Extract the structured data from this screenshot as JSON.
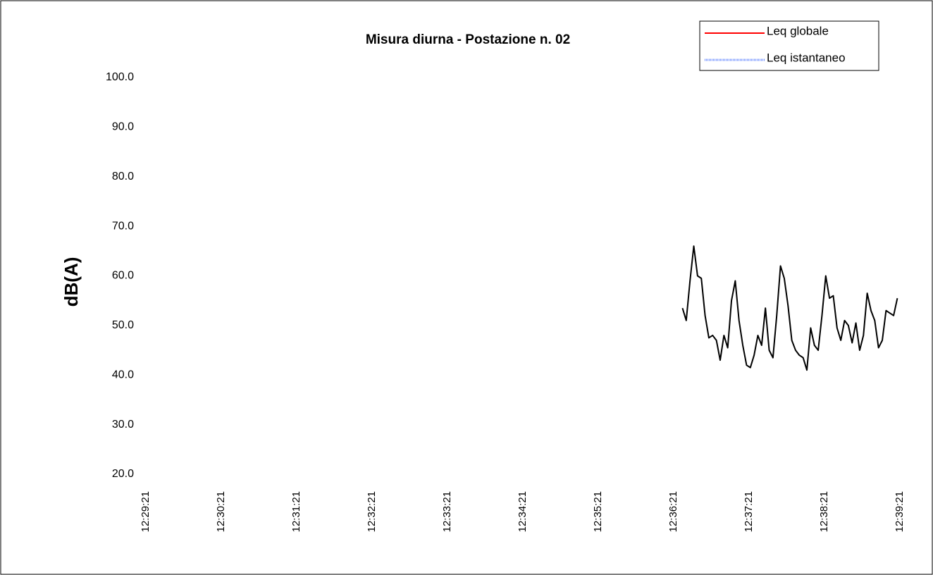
{
  "chart_data": {
    "type": "line",
    "title": "Misura diurna - Postazione n. 02",
    "ylabel": "dB(A)",
    "ylim": [
      20,
      100
    ],
    "yticks": [
      {
        "value": 20,
        "label": "20.0"
      },
      {
        "value": 30,
        "label": "30.0"
      },
      {
        "value": 40,
        "label": "40.0"
      },
      {
        "value": 50,
        "label": "50.0"
      },
      {
        "value": 60,
        "label": "60.0"
      },
      {
        "value": 70,
        "label": "70.0"
      },
      {
        "value": 80,
        "label": "80.0"
      },
      {
        "value": 90,
        "label": "90.0"
      },
      {
        "value": 100,
        "label": "100.0"
      }
    ],
    "xlim": [
      "12:29:21",
      "12:39:21"
    ],
    "xticks": [
      "12:29:21",
      "12:30:21",
      "12:31:21",
      "12:32:21",
      "12:33:21",
      "12:34:21",
      "12:35:21",
      "12:36:21",
      "12:37:21",
      "12:38:21",
      "12:39:21"
    ],
    "legend": "upper right",
    "x": [
      "12:36:28",
      "12:36:31",
      "12:36:34",
      "12:36:37",
      "12:36:40",
      "12:36:43",
      "12:36:46",
      "12:36:49",
      "12:36:52",
      "12:36:55",
      "12:36:58",
      "12:37:01",
      "12:37:04",
      "12:37:07",
      "12:37:10",
      "12:37:13",
      "12:37:16",
      "12:37:19",
      "12:37:22",
      "12:37:25",
      "12:37:28",
      "12:37:31",
      "12:37:34",
      "12:37:37",
      "12:37:40",
      "12:37:43",
      "12:37:46",
      "12:37:49",
      "12:37:52",
      "12:37:55",
      "12:37:58",
      "12:38:01",
      "12:38:04",
      "12:38:07",
      "12:38:10",
      "12:38:13",
      "12:38:16",
      "12:38:19",
      "12:38:22",
      "12:38:25",
      "12:38:28",
      "12:38:31",
      "12:38:34",
      "12:38:37",
      "12:38:40",
      "12:38:43",
      "12:38:46",
      "12:38:49",
      "12:38:52",
      "12:38:55",
      "12:38:58",
      "12:39:01",
      "12:39:04",
      "12:39:07",
      "12:39:10",
      "12:39:13",
      "12:39:16",
      "12:39:19"
    ],
    "series": [
      {
        "name": "Leq globale",
        "color": "#ff0000",
        "values": [
          null,
          null,
          null,
          null,
          null,
          null,
          null,
          null,
          null,
          null,
          null,
          null,
          null,
          null,
          null,
          null,
          null,
          null,
          null,
          null,
          null,
          null,
          null,
          null,
          null,
          null,
          null,
          null,
          null,
          null,
          null,
          null,
          null,
          null,
          null,
          null,
          null,
          null,
          null,
          null,
          null,
          null,
          null,
          null,
          null,
          null,
          null,
          null,
          null,
          null,
          null,
          null,
          null,
          null,
          null,
          null,
          null,
          null
        ]
      },
      {
        "name": "Leq istantaneo",
        "color": "#6b8cff",
        "line_color": "#000000",
        "values": [
          53.5,
          51,
          59,
          66,
          60,
          59.5,
          52,
          47.5,
          48,
          47,
          43,
          48,
          45.5,
          55,
          59,
          51,
          46,
          42,
          41.5,
          44,
          48,
          46,
          53.5,
          45,
          43.5,
          52,
          62,
          59.5,
          54,
          47,
          45,
          44,
          43.5,
          41,
          49.5,
          46,
          45,
          52,
          60,
          55.5,
          56,
          49.5,
          47,
          51,
          50,
          46.5,
          50.5,
          45,
          48,
          56.5,
          53,
          51,
          45.5,
          47,
          53,
          52.5,
          52,
          55.5
        ]
      }
    ]
  }
}
